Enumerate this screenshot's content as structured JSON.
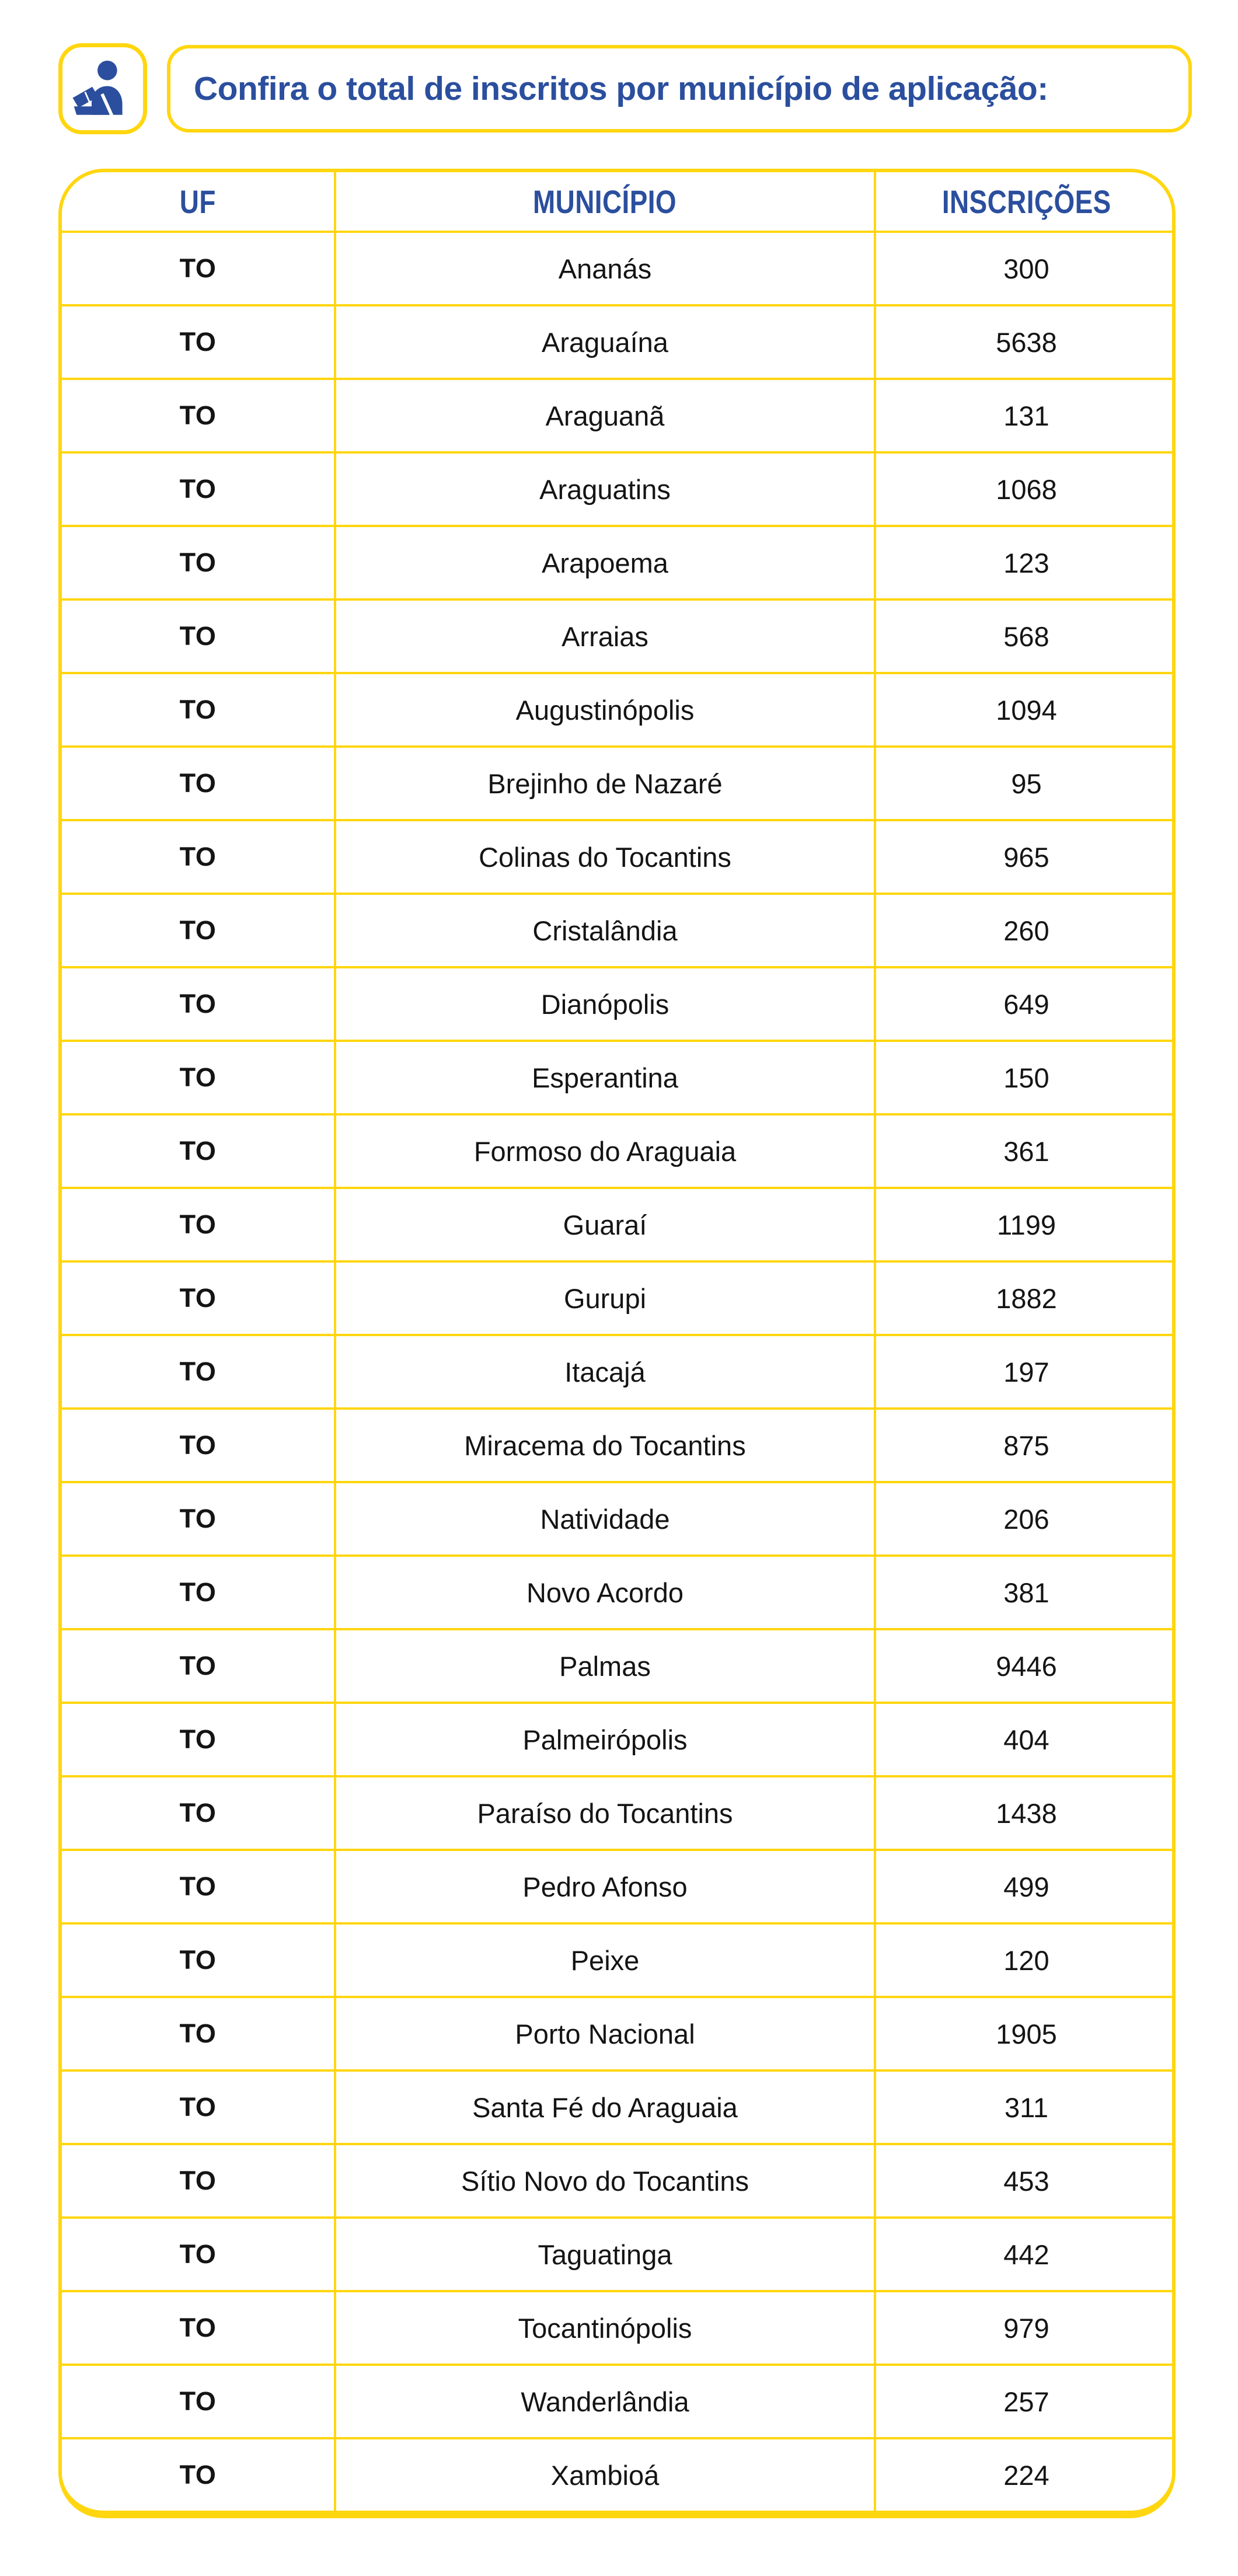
{
  "colors": {
    "yellow": "#FFD60F",
    "blue": "#2B4F9E",
    "text": "#141414"
  },
  "header": {
    "icon": "person-reading-icon",
    "title": "Confira o total de inscritos por município de aplicação:"
  },
  "table": {
    "columns": [
      "UF",
      "MUNICÍPIO",
      "INSCRIÇÕES"
    ],
    "rows": [
      [
        "TO",
        "Ananás",
        "300"
      ],
      [
        "TO",
        "Araguaína",
        "5638"
      ],
      [
        "TO",
        "Araguanã",
        "131"
      ],
      [
        "TO",
        "Araguatins",
        "1068"
      ],
      [
        "TO",
        "Arapoema",
        "123"
      ],
      [
        "TO",
        "Arraias",
        "568"
      ],
      [
        "TO",
        "Augustinópolis",
        "1094"
      ],
      [
        "TO",
        "Brejinho de Nazaré",
        "95"
      ],
      [
        "TO",
        "Colinas do Tocantins",
        "965"
      ],
      [
        "TO",
        "Cristalândia",
        "260"
      ],
      [
        "TO",
        "Dianópolis",
        "649"
      ],
      [
        "TO",
        "Esperantina",
        "150"
      ],
      [
        "TO",
        "Formoso do Araguaia",
        "361"
      ],
      [
        "TO",
        "Guaraí",
        "1199"
      ],
      [
        "TO",
        "Gurupi",
        "1882"
      ],
      [
        "TO",
        "Itacajá",
        "197"
      ],
      [
        "TO",
        "Miracema do Tocantins",
        "875"
      ],
      [
        "TO",
        "Natividade",
        "206"
      ],
      [
        "TO",
        "Novo Acordo",
        "381"
      ],
      [
        "TO",
        "Palmas",
        "9446"
      ],
      [
        "TO",
        "Palmeirópolis",
        "404"
      ],
      [
        "TO",
        "Paraíso do Tocantins",
        "1438"
      ],
      [
        "TO",
        "Pedro Afonso",
        "499"
      ],
      [
        "TO",
        "Peixe",
        "120"
      ],
      [
        "TO",
        "Porto Nacional",
        "1905"
      ],
      [
        "TO",
        "Santa Fé do Araguaia",
        "311"
      ],
      [
        "TO",
        "Sítio Novo do Tocantins",
        "453"
      ],
      [
        "TO",
        "Taguatinga",
        "442"
      ],
      [
        "TO",
        "Tocantinópolis",
        "979"
      ],
      [
        "TO",
        "Wanderlândia",
        "257"
      ],
      [
        "TO",
        "Xambioá",
        "224"
      ]
    ]
  }
}
